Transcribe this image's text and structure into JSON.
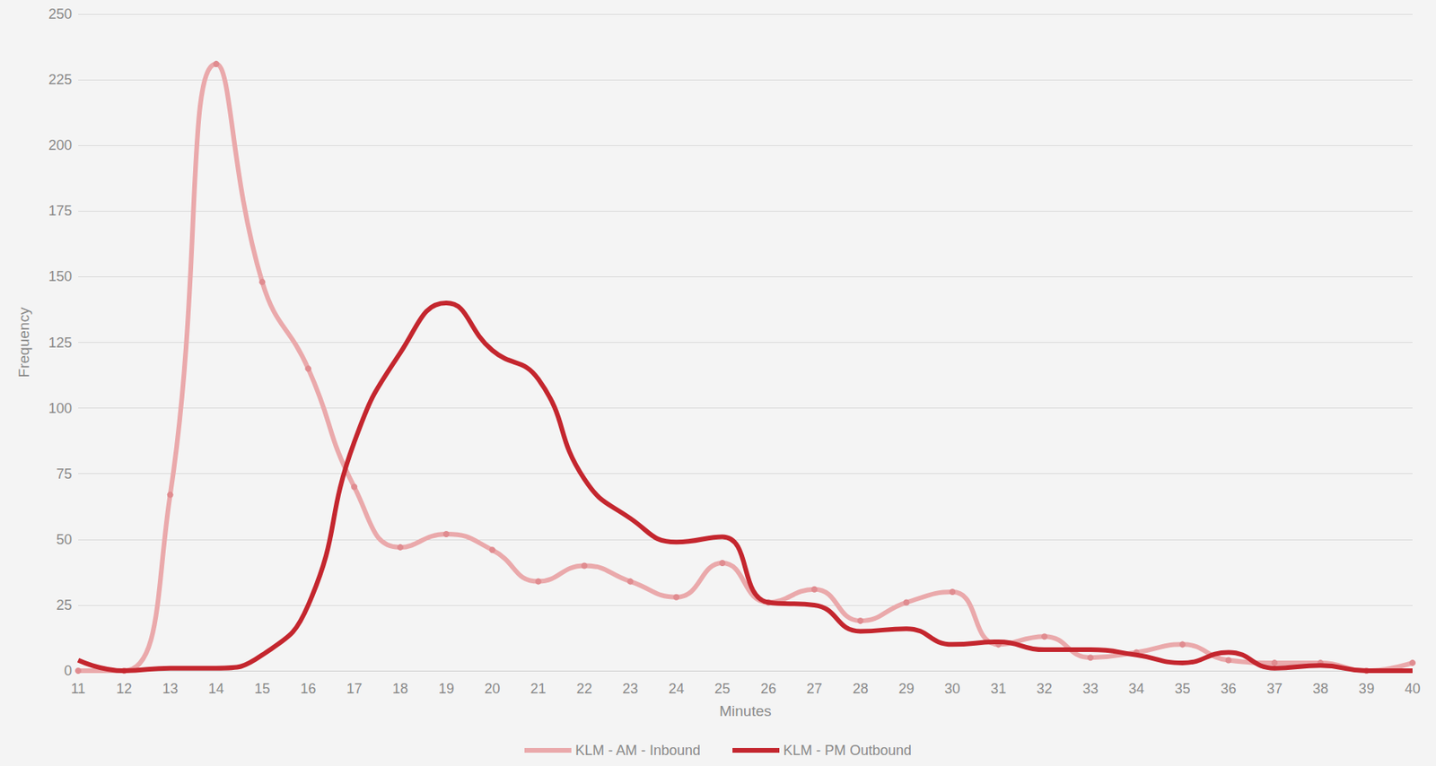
{
  "chart_data": {
    "type": "line",
    "x_label": "Minutes",
    "y_label": "Frequency",
    "categories": [
      "11",
      "12",
      "13",
      "14",
      "15",
      "16",
      "17",
      "18",
      "19",
      "20",
      "21",
      "22",
      "23",
      "24",
      "25",
      "26",
      "27",
      "28",
      "29",
      "30",
      "31",
      "32",
      "33",
      "34",
      "35",
      "36",
      "37",
      "38",
      "39",
      "40"
    ],
    "series": [
      {
        "name": "KLM - AM - Inbound",
        "color": "#eaa9ab",
        "marker": "circle",
        "line_style": "solid",
        "values": [
          0,
          0,
          67,
          231,
          148,
          115,
          70,
          47,
          52,
          46,
          34,
          40,
          34,
          28,
          41,
          26,
          31,
          19,
          26,
          30,
          10,
          13,
          5,
          7,
          10,
          4,
          3,
          3,
          0,
          3
        ]
      },
      {
        "name": "KLM - PM Outbound",
        "color": "#c4262e",
        "marker": "none",
        "line_style": "solid",
        "values": [
          4,
          0,
          1,
          1,
          6,
          25,
          87,
          121,
          140,
          122,
          111,
          73,
          58,
          49,
          51,
          26,
          25,
          15,
          16,
          10,
          11,
          8,
          8,
          6,
          3,
          7,
          1,
          2,
          0,
          0
        ]
      }
    ],
    "ylim": [
      0,
      250
    ],
    "yticks": [
      0,
      25,
      50,
      75,
      100,
      125,
      150,
      175,
      200,
      225,
      250
    ],
    "grid": true,
    "legend": "bottom"
  }
}
